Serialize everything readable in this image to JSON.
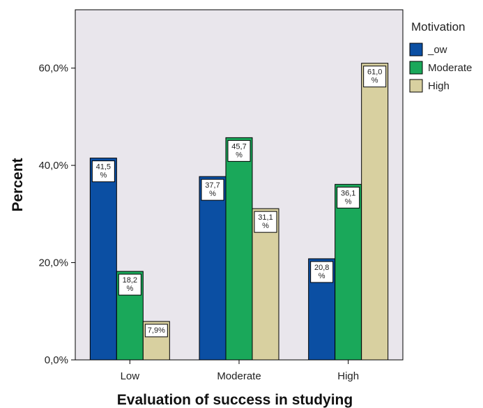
{
  "chart_data": {
    "type": "bar",
    "title": "",
    "xlabel": "Evaluation of success in studying",
    "ylabel": "Percent",
    "categories": [
      "Low",
      "Moderate",
      "High"
    ],
    "legend_title": "Motivation",
    "legend_position": "top-right",
    "ylim": [
      0,
      72
    ],
    "yticks": [
      0,
      20,
      40,
      60
    ],
    "ytick_labels": [
      "0,0%",
      "20,0%",
      "40,0%",
      "60,0%"
    ],
    "grid": false,
    "series": [
      {
        "name": "_ow",
        "color": "#0b4fa3",
        "values": [
          41.5,
          37.7,
          20.8
        ],
        "labels": [
          "41,5\n%",
          "37,7\n%",
          "20,8\n%"
        ]
      },
      {
        "name": "Moderate",
        "color": "#1aa85a",
        "values": [
          18.2,
          45.7,
          36.1
        ],
        "labels": [
          "18,2\n%",
          "45,7\n%",
          "36,1\n%"
        ]
      },
      {
        "name": "High",
        "color": "#d8d0a0",
        "values": [
          7.9,
          31.1,
          61.0
        ],
        "labels": [
          "7,9%",
          "31,1\n%",
          "61,0\n%"
        ]
      }
    ]
  }
}
